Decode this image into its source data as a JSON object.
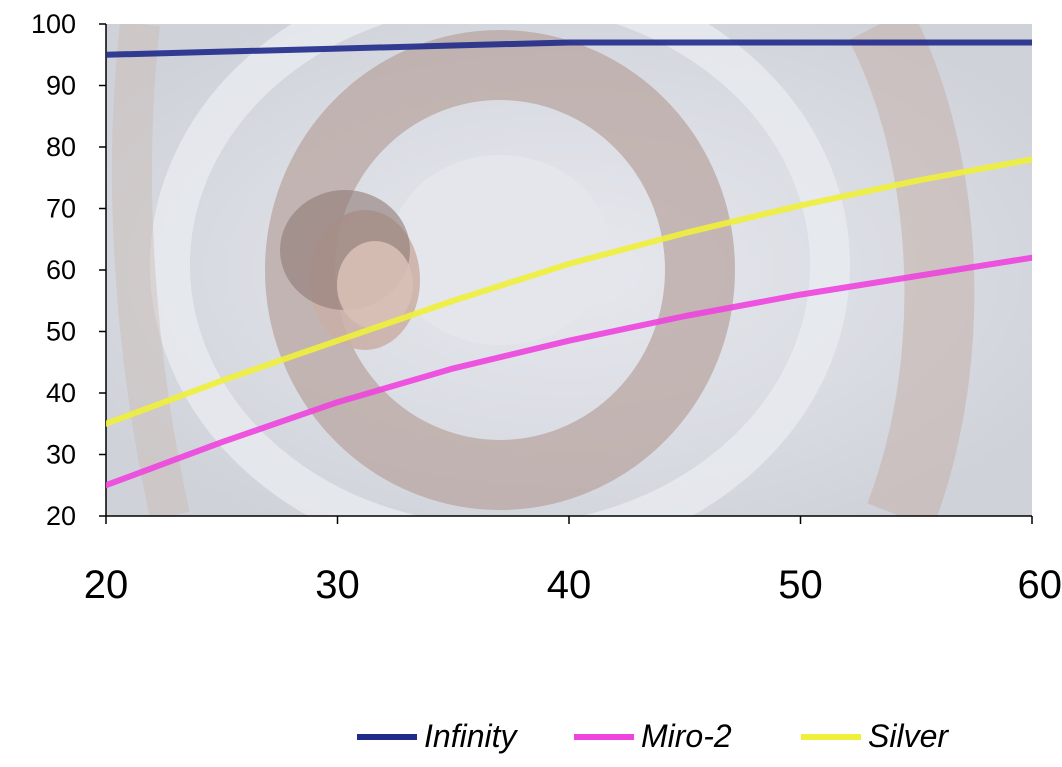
{
  "chart_data": {
    "type": "line",
    "title": "",
    "xlabel": "",
    "ylabel": "",
    "x": [
      20,
      25,
      30,
      35,
      40,
      45,
      50,
      55,
      60
    ],
    "xlim": [
      20,
      60
    ],
    "ylim": [
      20,
      100
    ],
    "xticks": [
      "20",
      "30",
      "40",
      "50",
      "60"
    ],
    "yticks": [
      "20",
      "30",
      "40",
      "50",
      "60",
      "70",
      "80",
      "90",
      "100"
    ],
    "grid": false,
    "legend_position": "bottom",
    "background": "photo of a swirl with a face in the center",
    "series": [
      {
        "name": "Infinity",
        "color": "#1f2a8a",
        "values": [
          95,
          95.5,
          96,
          96.5,
          97,
          97,
          97,
          97,
          97
        ]
      },
      {
        "name": "Miro-2",
        "color": "#ee44dd",
        "values": [
          25,
          32,
          38.5,
          44,
          48.5,
          52.5,
          56,
          59,
          62
        ]
      },
      {
        "name": "Silver",
        "color": "#f0ef3a",
        "values": [
          35,
          42,
          48.5,
          55,
          61,
          66,
          70.5,
          74.5,
          78
        ]
      }
    ]
  }
}
